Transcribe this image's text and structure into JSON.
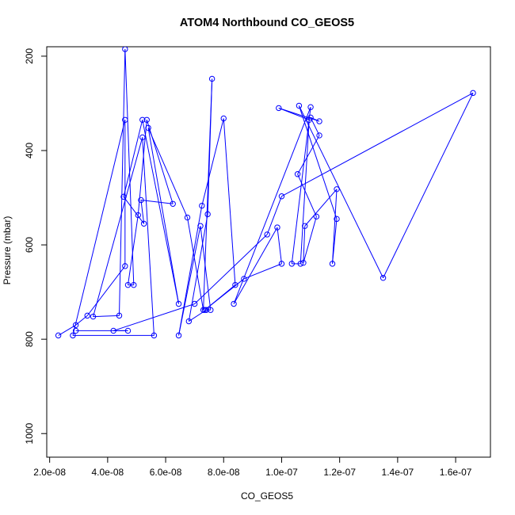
{
  "chart_data": {
    "type": "scatter",
    "title": "ATOM4 Northbound CO_GEOS5",
    "xlabel": "CO_GEOS5",
    "ylabel": "Pressure (mbar)",
    "xlim": [
      1.9e-08,
      1.72e-07
    ],
    "ylim": [
      1050,
      180
    ],
    "y_reversed": true,
    "x_ticks": [
      2e-08,
      4e-08,
      6e-08,
      8e-08,
      1e-07,
      1.2e-07,
      1.4e-07,
      1.6e-07
    ],
    "x_tick_labels": [
      "2.0e-08",
      "4.0e-08",
      "6.0e-08",
      "8.0e-08",
      "1.0e-07",
      "1.2e-07",
      "1.4e-07",
      "1.6e-07"
    ],
    "y_ticks": [
      200,
      400,
      600,
      800,
      1000
    ],
    "y_tick_labels": [
      "200",
      "400",
      "600",
      "800",
      "1000"
    ],
    "grid": false,
    "line_color": "#0000ff",
    "marker": "open-circle",
    "series": [
      {
        "values_note": "",
        "x": [
          2.3e-08,
          2.9e-08,
          3.3e-08,
          4.6e-08,
          4.6e-08,
          2.8e-08,
          5.6e-08,
          5.2e-08,
          3.5e-08,
          4.4e-08,
          4.6e-08,
          4.9e-08,
          4.7e-08,
          5.05e-08,
          5.35e-08,
          6.25e-08,
          5.15e-08,
          5.25e-08,
          4.55e-08,
          5.2e-08,
          6.45e-08,
          5.4e-08,
          6.75e-08,
          7.3e-08,
          7.6e-08,
          7.45e-08,
          6.8e-08,
          7.4e-08,
          7.55e-08,
          7.2e-08,
          6.45e-08,
          7.25e-08,
          8e-08,
          8.4e-08,
          7.35e-08,
          8.7e-08,
          1e-07,
          9.85e-08,
          8.35e-08,
          1.1e-07,
          1.035e-07,
          1.065e-07,
          1.095e-07,
          9.9e-08,
          1.13e-07,
          1.1e-07,
          1.13e-07,
          1.055e-07,
          1.12e-07,
          1.075e-07,
          1.08e-07,
          1.19e-07,
          1.175e-07,
          1.19e-07,
          1.06e-07,
          1.35e-07,
          1.66e-07,
          1e-07,
          9.5e-08,
          7e-08,
          4.2e-08,
          4.7e-08,
          2.9e-08
        ],
        "y": [
          792,
          770,
          750,
          645,
          335,
          792,
          792,
          372,
          752,
          750,
          185,
          685,
          685,
          537,
          335,
          513,
          505,
          555,
          498,
          335,
          725,
          352,
          542,
          738,
          248,
          535,
          762,
          738,
          738,
          560,
          792,
          517,
          332,
          685,
          738,
          672,
          640,
          563,
          725,
          308,
          640,
          640,
          335,
          310,
          338,
          330,
          368,
          450,
          540,
          638,
          560,
          482,
          640,
          545,
          305,
          670,
          278,
          497,
          578,
          725,
          782,
          782,
          782
        ]
      }
    ]
  }
}
